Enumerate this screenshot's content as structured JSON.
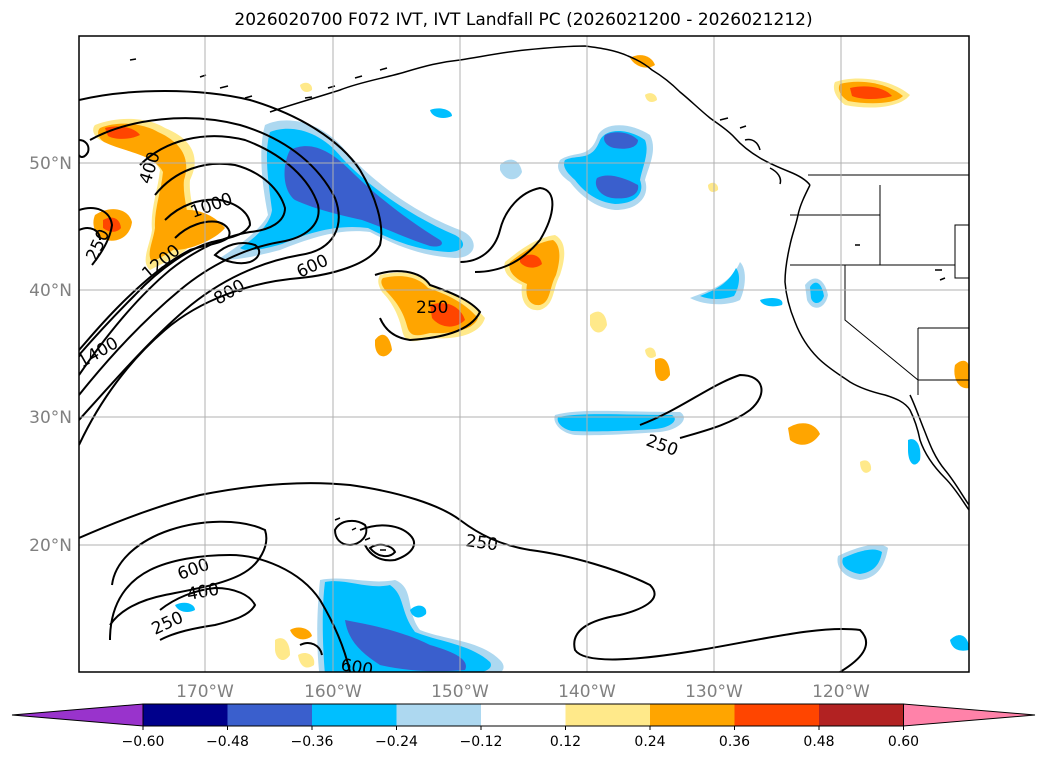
{
  "title": "2026020700 F072 IVT, IVT Landfall PC (2026021200 - 2026021212)",
  "map": {
    "lon_labels": [
      "170°W",
      "160°W",
      "150°W",
      "140°W",
      "130°W",
      "120°W"
    ],
    "lat_labels": [
      "50°N",
      "40°N",
      "30°N",
      "20°N"
    ],
    "contour_labels": [
      "400",
      "1000",
      "250",
      "1200",
      "600",
      "800",
      "250",
      "1400",
      "250",
      "250",
      "600",
      "400",
      "250",
      "600"
    ]
  },
  "colorbar": {
    "colors": [
      "#9933cc",
      "#00008b",
      "#3a5fcd",
      "#00bfff",
      "#add8f0",
      "#ffffff",
      "#ffe98a",
      "#ffa500",
      "#ff4500",
      "#b22222",
      "#ff82a9"
    ],
    "tick_labels": [
      "−0.60",
      "−0.48",
      "−0.36",
      "−0.24",
      "−0.12",
      "0.12",
      "0.24",
      "0.36",
      "0.48",
      "0.60"
    ]
  }
}
